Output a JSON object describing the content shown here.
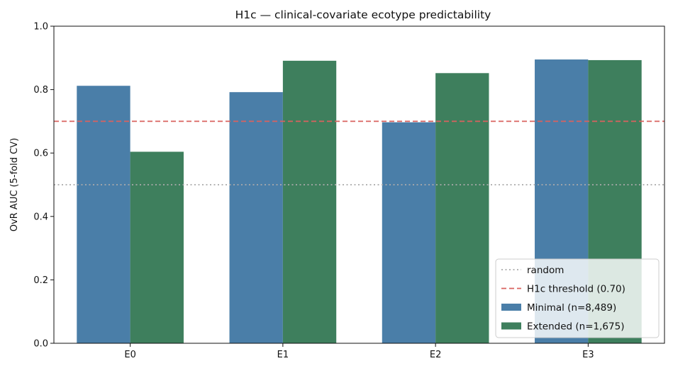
{
  "chart_data": {
    "type": "bar",
    "title": "H1c — clinical-covariate ecotype predictability",
    "xlabel": "",
    "ylabel": "OvR AUC (5-fold CV)",
    "ylim": [
      0,
      1
    ],
    "yticks": [
      "0.0",
      "0.2",
      "0.4",
      "0.6",
      "0.8",
      "1.0"
    ],
    "categories": [
      "E0",
      "E1",
      "E2",
      "E3"
    ],
    "series": [
      {
        "name": "Minimal (n=8,489)",
        "color": "#4a7ea8",
        "values": [
          0.812,
          0.792,
          0.697,
          0.895
        ]
      },
      {
        "name": "Extended (n=1,675)",
        "color": "#3e7f5d",
        "values": [
          0.604,
          0.891,
          0.852,
          0.893
        ]
      }
    ],
    "reference_lines": [
      {
        "name": "random",
        "value": 0.5,
        "color": "#aaaaaa",
        "style": "dotted"
      },
      {
        "name": "H1c threshold (0.70)",
        "value": 0.7,
        "color": "#d9625f",
        "style": "dashed"
      }
    ],
    "legend_position": "lower-right",
    "grid": false
  }
}
